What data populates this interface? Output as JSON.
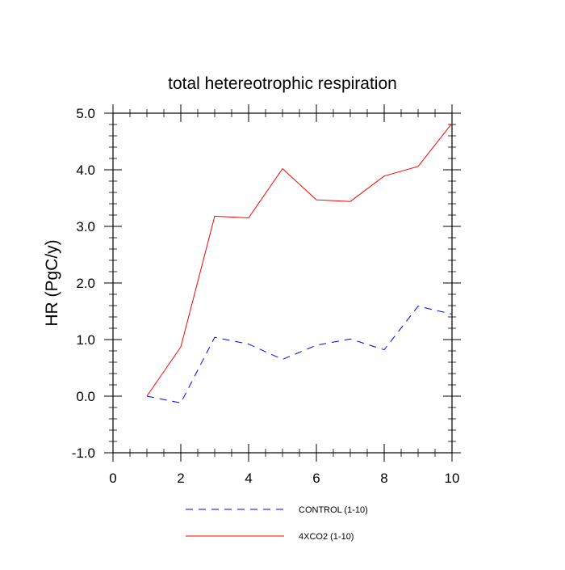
{
  "chart_data": {
    "type": "line",
    "title": "total hetereotrophic respiration",
    "xlabel": "",
    "ylabel": "HR  (PgC/y)",
    "xlim": [
      0,
      10
    ],
    "ylim": [
      -1.0,
      5.0
    ],
    "x_ticks": [
      0,
      2,
      4,
      6,
      8,
      10
    ],
    "y_ticks": [
      -1.0,
      0.0,
      1.0,
      2.0,
      3.0,
      4.0,
      5.0
    ],
    "x_tick_labels": [
      "0",
      "2",
      "4",
      "6",
      "8",
      "10"
    ],
    "y_tick_labels": [
      "-1.0",
      "0.0",
      "1.0",
      "2.0",
      "3.0",
      "4.0",
      "5.0"
    ],
    "grid": false,
    "legend_position": "bottom",
    "series": [
      {
        "name": "CONTROL (1-10)",
        "color": "#0000ff",
        "dash": "dashed",
        "x": [
          1,
          2,
          3,
          4,
          5,
          6,
          7,
          8,
          9,
          10
        ],
        "y": [
          0.0,
          -0.12,
          1.04,
          0.92,
          0.65,
          0.9,
          1.01,
          0.82,
          1.59,
          1.45
        ]
      },
      {
        "name": "4XCO2 (1-10)",
        "color": "#ff0000",
        "dash": "solid",
        "x": [
          1,
          2,
          3,
          4,
          5,
          6,
          7,
          8,
          9,
          10
        ],
        "y": [
          0.0,
          0.87,
          3.18,
          3.15,
          4.02,
          3.47,
          3.44,
          3.89,
          4.06,
          4.82
        ]
      }
    ]
  }
}
